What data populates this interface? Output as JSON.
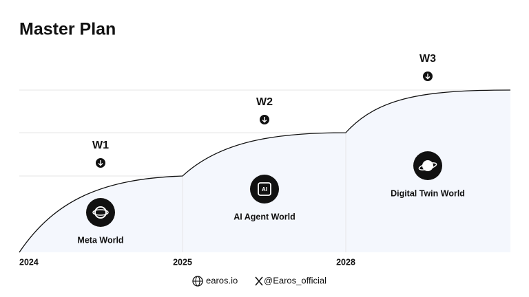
{
  "title": "Master Plan",
  "stages": [
    {
      "wave": "W1",
      "name": "Meta World"
    },
    {
      "wave": "W2",
      "name": "AI Agent World",
      "icon_text": "AI"
    },
    {
      "wave": "W3",
      "name": "Digital Twin World"
    }
  ],
  "years": [
    "2024",
    "2025",
    "2028"
  ],
  "footer": {
    "website": "earos.io",
    "social": "@Earos_official"
  }
}
